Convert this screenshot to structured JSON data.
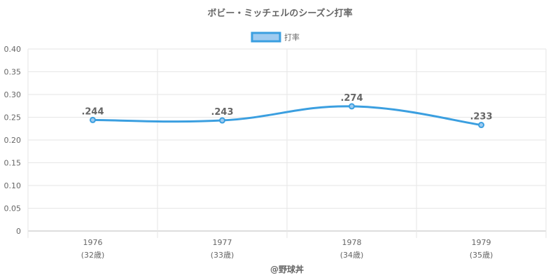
{
  "chart_data": {
    "type": "line",
    "title": "ボビー・ミッチェルのシーズン打率",
    "legend": {
      "label": "打率",
      "position": "top"
    },
    "categories": [
      "1976",
      "1977",
      "1978",
      "1979"
    ],
    "sublabels": [
      "(32歳)",
      "(33歳)",
      "(34歳)",
      "(35歳)"
    ],
    "series": [
      {
        "name": "打率",
        "values": [
          0.244,
          0.243,
          0.274,
          0.233
        ],
        "labels": [
          ".244",
          ".243",
          ".274",
          ".233"
        ]
      }
    ],
    "yticks": [
      "0",
      "0.05",
      "0.10",
      "0.15",
      "0.20",
      "0.25",
      "0.30",
      "0.35",
      "0.40"
    ],
    "ylim": [
      0,
      0.4
    ],
    "grid": true,
    "colors": {
      "line": "#3b9fe0",
      "fill": "#9fcbf0",
      "grid": "#e6e6e6",
      "text": "#666666"
    }
  },
  "footer": "@野球丼"
}
